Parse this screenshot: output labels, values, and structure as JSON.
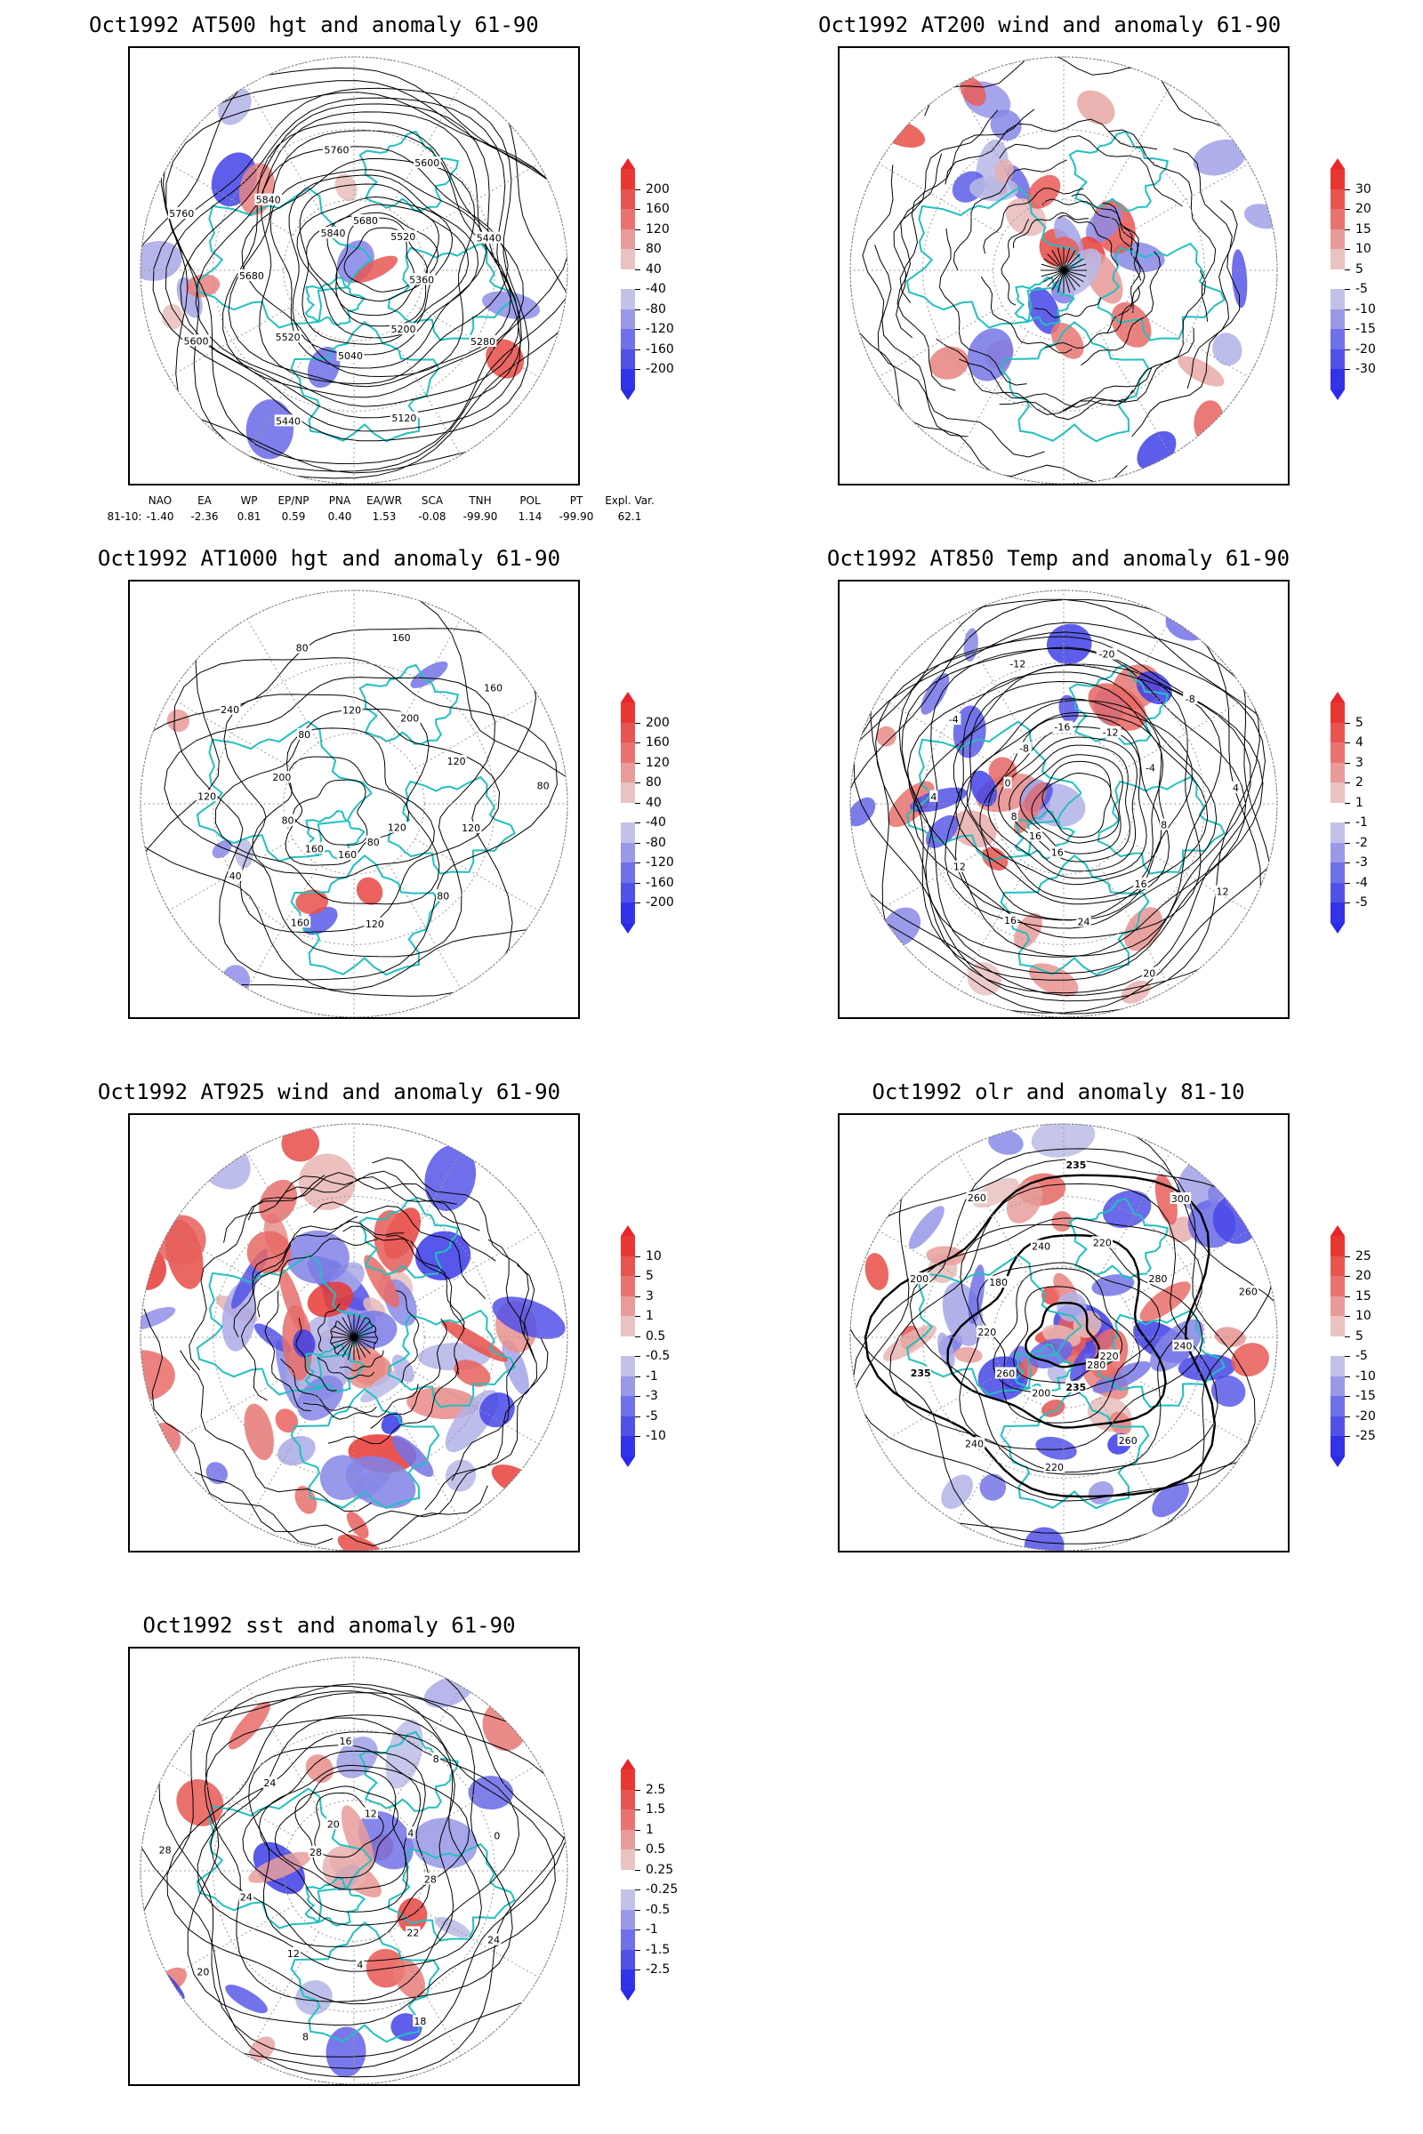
{
  "colors": {
    "land": "#22c0c0",
    "positive": "#e8262a",
    "negative": "#2a2ae8",
    "contour": "#000000",
    "grid": "#9a9a9a"
  },
  "panels": [
    {
      "id": "p500",
      "title": "Oct1992 AT500 hgt and anomaly 61-90",
      "colorbar": {
        "levels": [
          "200",
          "160",
          "120",
          "80",
          "40",
          "-40",
          "-80",
          "-120",
          "-160",
          "-200"
        ],
        "max": 200
      },
      "contour_labels": [
        "5840",
        "5760",
        "5680",
        "5600",
        "5520",
        "5440",
        "5360",
        "5280",
        "5200",
        "5120",
        "5040",
        "5440",
        "5520",
        "5600",
        "5680",
        "5760",
        "5840"
      ]
    },
    {
      "id": "p200",
      "title": "Oct1992 AT200 wind and anomaly 61-90",
      "colorbar": {
        "levels": [
          "30",
          "20",
          "15",
          "10",
          "5",
          "-5",
          "-10",
          "-15",
          "-20",
          "-30"
        ],
        "max": 30
      },
      "contour_labels": []
    },
    {
      "id": "p1000",
      "title": "Oct1992 AT1000 hgt and anomaly 61-90",
      "colorbar": {
        "levels": [
          "200",
          "160",
          "120",
          "80",
          "40",
          "-40",
          "-80",
          "-120",
          "-160",
          "-200"
        ],
        "max": 200
      },
      "contour_labels": [
        "80",
        "120",
        "160",
        "160",
        "160",
        "40",
        "80",
        "120",
        "200",
        "240",
        "80",
        "80",
        "120",
        "160",
        "200",
        "160",
        "120",
        "80",
        "120",
        "120",
        "80"
      ]
    },
    {
      "id": "p850",
      "title": "Oct1992 AT850 Temp and anomaly 61-90",
      "colorbar": {
        "levels": [
          "5",
          "4",
          "3",
          "2",
          "1",
          "-1",
          "-2",
          "-3",
          "-4",
          "-5"
        ],
        "max": 5
      },
      "contour_labels": [
        "16",
        "12",
        "8",
        "4",
        "0",
        "-4",
        "-8",
        "-12",
        "-16",
        "-20",
        "-12",
        "-8",
        "-4",
        "4",
        "8",
        "12",
        "16",
        "20",
        "24",
        "16",
        "16"
      ]
    },
    {
      "id": "p925",
      "title": "Oct1992 AT925 wind and anomaly 61-90",
      "colorbar": {
        "levels": [
          "10",
          "5",
          "3",
          "1",
          "0.5",
          "-0.5",
          "-1",
          "-3",
          "-5",
          "-10"
        ],
        "max": 10
      },
      "contour_labels": []
    },
    {
      "id": "polr",
      "title": "Oct1992 olr and anomaly 81-10",
      "colorbar": {
        "levels": [
          "25",
          "20",
          "15",
          "10",
          "5",
          "-5",
          "-10",
          "-15",
          "-20",
          "-25"
        ],
        "max": 25
      },
      "contour_labels": [
        "280",
        "260",
        "235",
        "220",
        "200",
        "240",
        "260",
        "235",
        "220",
        "200",
        "180",
        "260",
        "240",
        "235",
        "220",
        "300",
        "280",
        "260",
        "240",
        "220"
      ]
    },
    {
      "id": "psst",
      "title": "Oct1992 sst and anomaly 61-90",
      "colorbar": {
        "levels": [
          "2.5",
          "1.5",
          "1",
          "0.5",
          "0.25",
          "-0.25",
          "-0.5",
          "-1",
          "-1.5",
          "-2.5"
        ],
        "max": 2.5
      },
      "contour_labels": [
        "28",
        "24",
        "20",
        "16",
        "12",
        "8",
        "4",
        "0",
        "28",
        "24",
        "22",
        "18",
        "4",
        "8",
        "12",
        "20",
        "24",
        "28"
      ]
    }
  ],
  "teleconnection": {
    "headers": [
      "NAO",
      "EA",
      "WP",
      "EP/NP",
      "PNA",
      "EA/WR",
      "SCA",
      "TNH",
      "POL",
      "PT",
      "Expl. Var."
    ],
    "row_label": "81-10:",
    "values": [
      "-1.40",
      "-2.36",
      "0.81",
      "0.59",
      "0.40",
      "1.53",
      "-0.08",
      "-99.90",
      "1.14",
      "-99.90",
      "62.1"
    ]
  }
}
